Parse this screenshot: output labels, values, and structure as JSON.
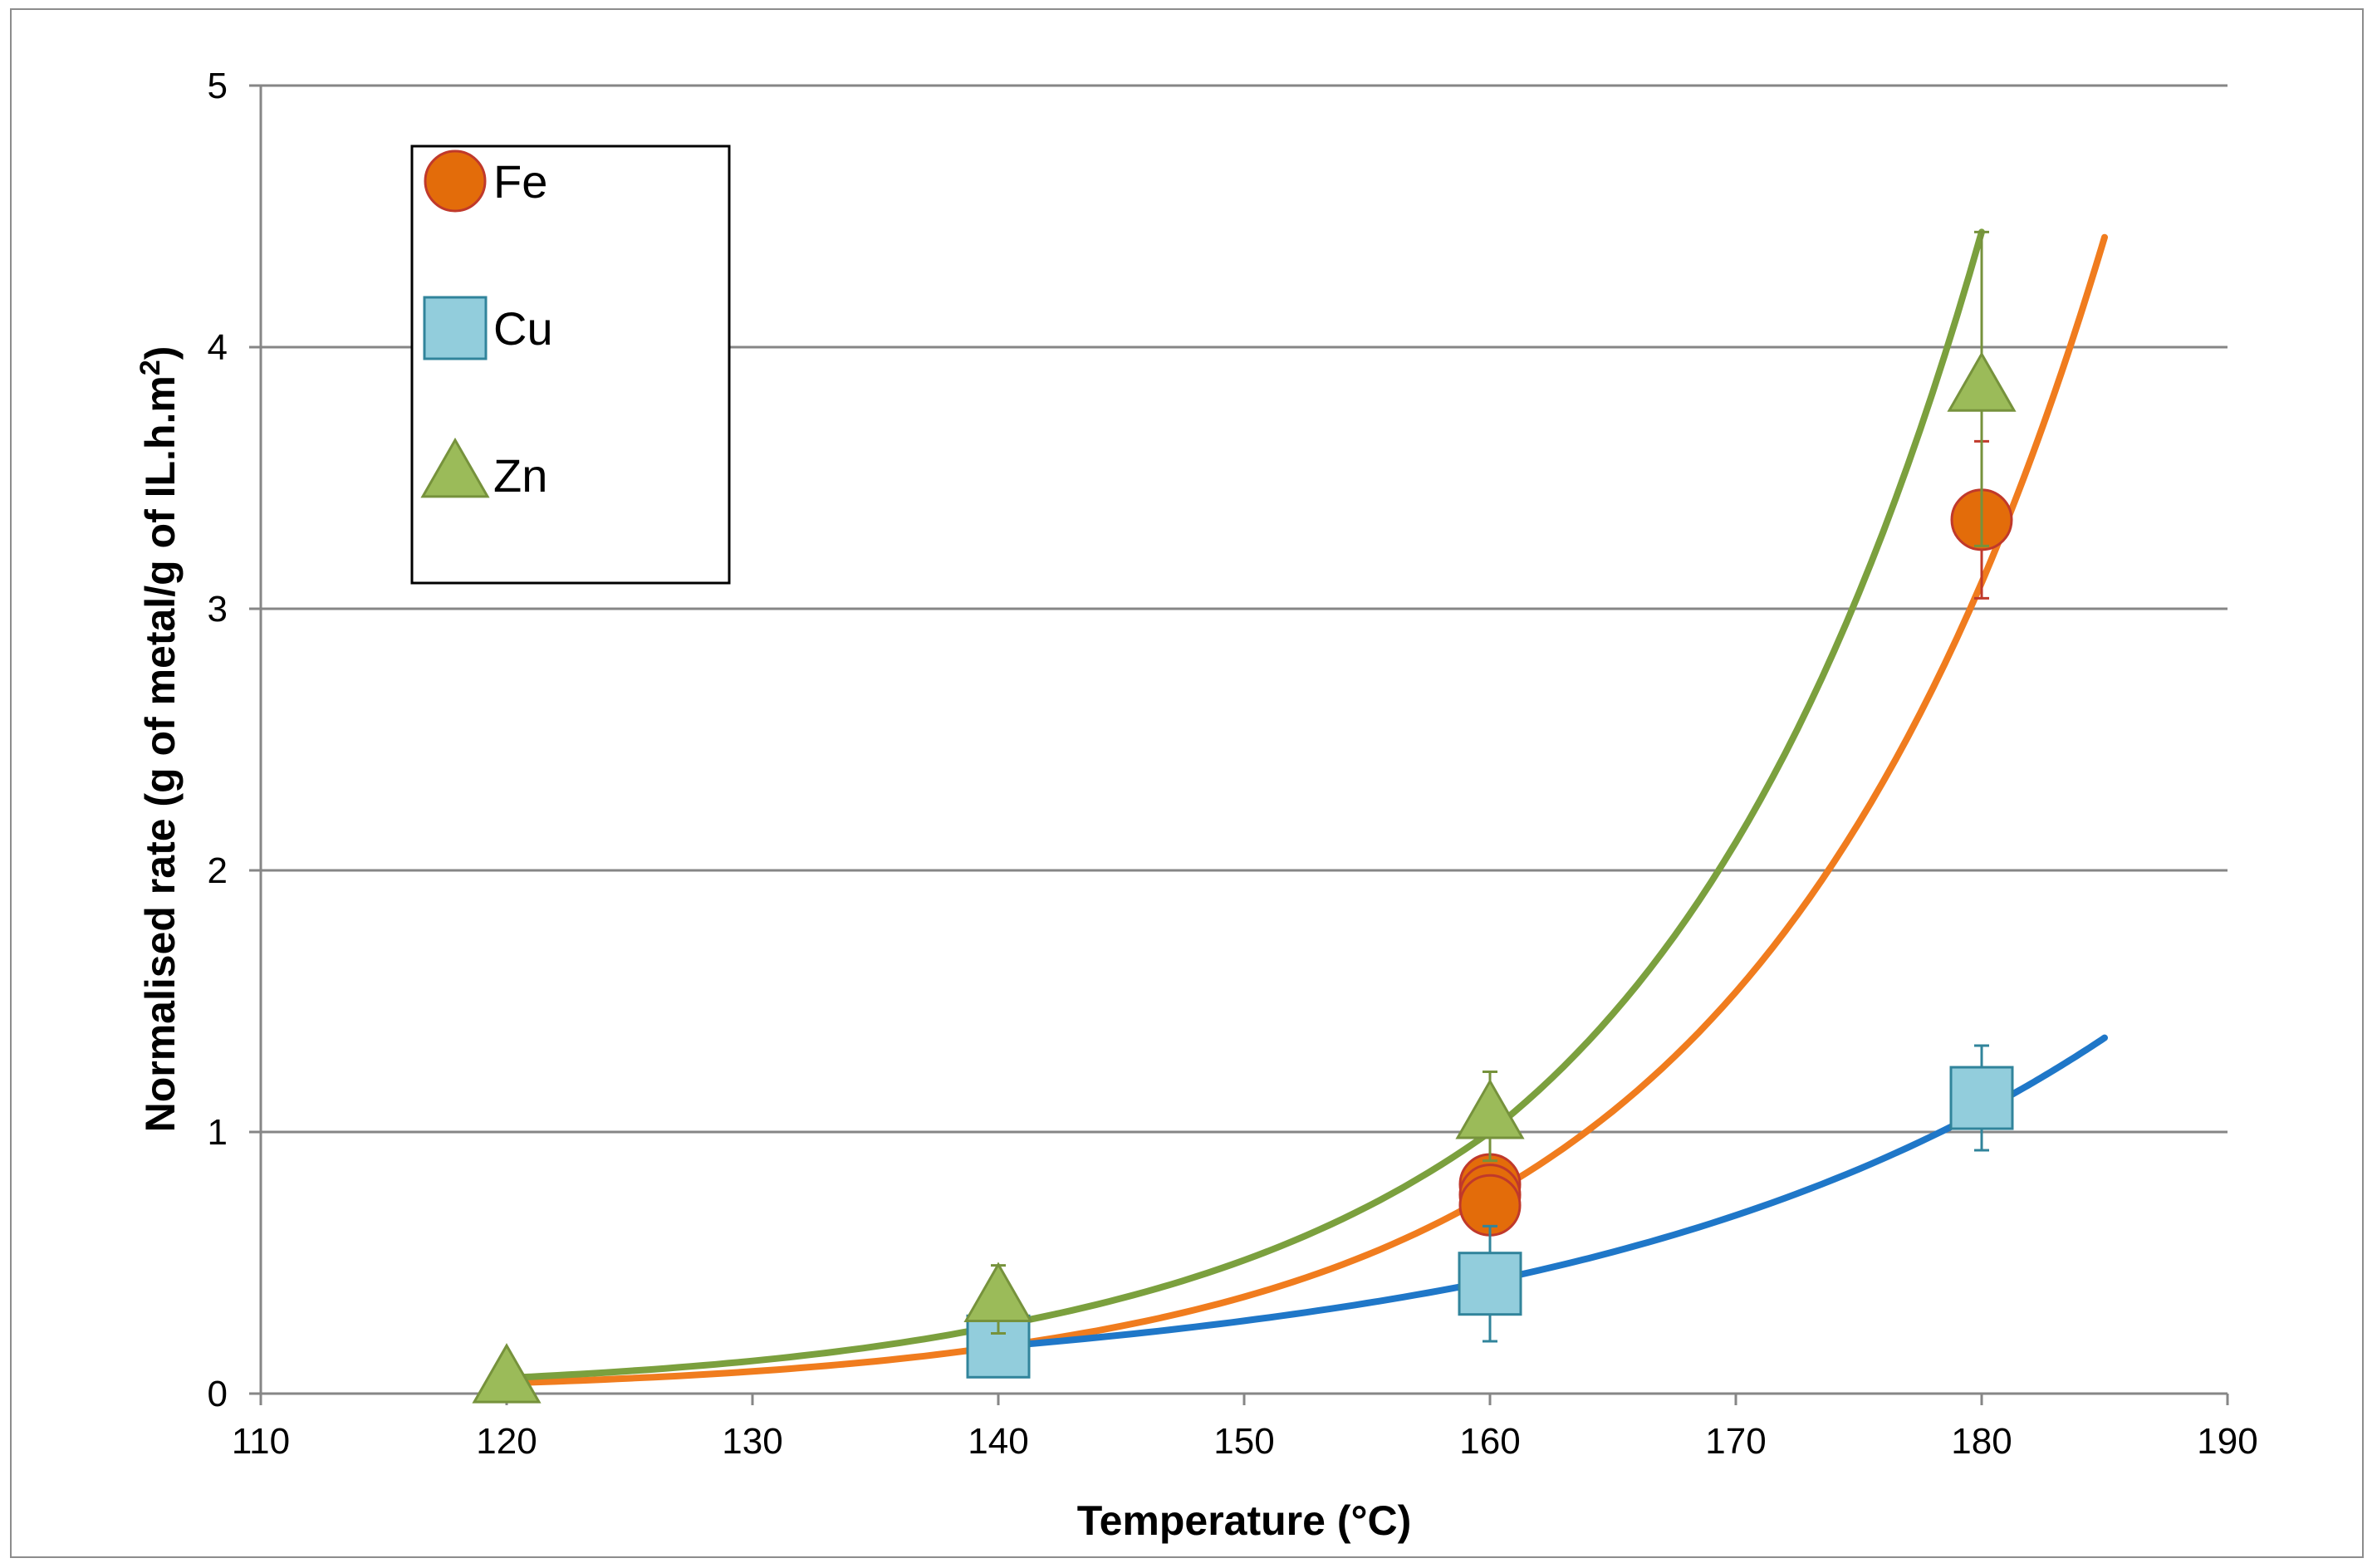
{
  "chart_data": {
    "type": "scatter",
    "xlabel": "Temperature (°C)",
    "ylabel": "Normalised rate (g of metal/g of IL.h.m",
    "ylabel_sup": "2",
    "ylabel_close": ")",
    "xlim": [
      110,
      190
    ],
    "ylim": [
      0,
      5
    ],
    "xticks": [
      110,
      120,
      130,
      140,
      150,
      160,
      170,
      180,
      190
    ],
    "yticks": [
      0,
      1,
      2,
      3,
      4,
      5
    ],
    "grid": true,
    "legend_position": "top-left",
    "series": [
      {
        "name": "Fe",
        "marker": "circle",
        "color": "#E36C0A",
        "edge": "#C0392B",
        "points": [
          {
            "x": 160,
            "y": 0.8
          },
          {
            "x": 160,
            "y": 0.76
          },
          {
            "x": 160,
            "y": 0.72
          },
          {
            "x": 180,
            "y": 3.34,
            "err": 0.3
          }
        ],
        "trend": {
          "color": "#F07C1E",
          "x_start": 120,
          "x_end": 185,
          "y_at": [
            [
              120,
              0.04
            ],
            [
              140,
              0.18
            ],
            [
              160,
              0.76
            ],
            [
              180,
              3.1
            ],
            [
              185,
              4.42
            ]
          ]
        }
      },
      {
        "name": "Cu",
        "marker": "square",
        "color": "#92CDDC",
        "edge": "#31849B",
        "points": [
          {
            "x": 140,
            "y": 0.18
          },
          {
            "x": 160,
            "y": 0.42,
            "err": 0.22
          },
          {
            "x": 180,
            "y": 1.13,
            "err": 0.2
          }
        ],
        "trend": {
          "color": "#1F77C8",
          "x_start": 140,
          "x_end": 185,
          "y_at": [
            [
              140,
              0.18
            ],
            [
              160,
              0.43
            ],
            [
              180,
              1.08
            ],
            [
              185,
              1.36
            ]
          ]
        }
      },
      {
        "name": "Zn",
        "marker": "triangle",
        "color": "#9BBB59",
        "edge": "#76923C",
        "points": [
          {
            "x": 120,
            "y": 0.05
          },
          {
            "x": 140,
            "y": 0.36,
            "err": 0.13
          },
          {
            "x": 160,
            "y": 1.06,
            "err": 0.17
          },
          {
            "x": 180,
            "y": 3.84,
            "err": 0.6
          }
        ],
        "trend": {
          "color": "#7BA03E",
          "x_start": 120,
          "x_end": 180,
          "y_at": [
            [
              120,
              0.06
            ],
            [
              140,
              0.26
            ],
            [
              160,
              1.0
            ],
            [
              180,
              4.44
            ]
          ]
        }
      }
    ]
  }
}
